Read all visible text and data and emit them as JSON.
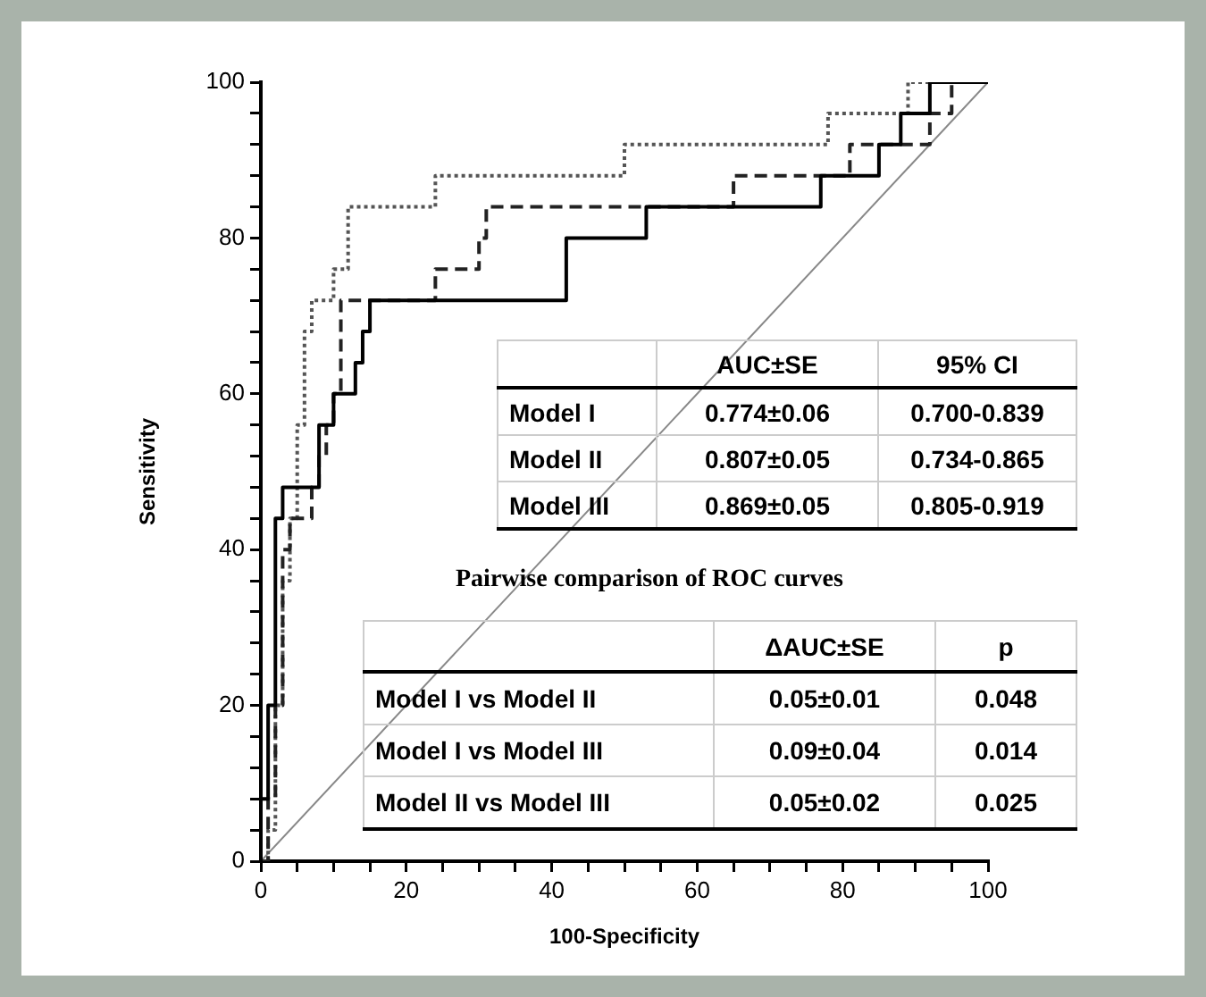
{
  "chart_data": {
    "type": "step",
    "xlabel": "100-Specificity",
    "ylabel": "Sensitivity",
    "xlim": [
      0,
      100
    ],
    "ylim": [
      0,
      100
    ],
    "xticks": [
      0,
      {
        "value": 5,
        "label": null
      },
      {
        "value": 10,
        "label": null
      },
      {
        "value": 15,
        "label": null
      },
      20,
      {
        "value": 25,
        "label": null
      },
      {
        "value": 30,
        "label": null
      },
      {
        "value": 35,
        "label": null
      },
      40,
      {
        "value": 45,
        "label": null
      },
      {
        "value": 50,
        "label": null
      },
      {
        "value": 55,
        "label": null
      },
      60,
      {
        "value": 65,
        "label": null
      },
      {
        "value": 70,
        "label": null
      },
      {
        "value": 75,
        "label": null
      },
      80,
      {
        "value": 85,
        "label": null
      },
      {
        "value": 90,
        "label": null
      },
      {
        "value": 95,
        "label": null
      },
      100
    ],
    "yticks": [
      0,
      {
        "value": 4,
        "label": null
      },
      {
        "value": 8,
        "label": null
      },
      {
        "value": 12,
        "label": null
      },
      {
        "value": 16,
        "label": null
      },
      20,
      {
        "value": 24,
        "label": null
      },
      {
        "value": 28,
        "label": null
      },
      {
        "value": 32,
        "label": null
      },
      {
        "value": 36,
        "label": null
      },
      40,
      {
        "value": 44,
        "label": null
      },
      {
        "value": 48,
        "label": null
      },
      {
        "value": 52,
        "label": null
      },
      {
        "value": 56,
        "label": null
      },
      60,
      {
        "value": 64,
        "label": null
      },
      {
        "value": 68,
        "label": null
      },
      {
        "value": 72,
        "label": null
      },
      {
        "value": 76,
        "label": null
      },
      80,
      {
        "value": 84,
        "label": null
      },
      {
        "value": 88,
        "label": null
      },
      {
        "value": 92,
        "label": null
      },
      {
        "value": 96,
        "label": null
      },
      100
    ],
    "marker": "none",
    "series": [
      {
        "type": "step",
        "color": "#000000",
        "line_style": "solid",
        "x": [
          0,
          0,
          1,
          2,
          3,
          8,
          10,
          13,
          14,
          15,
          42,
          53,
          77,
          85,
          88,
          92,
          100
        ],
        "values": [
          0,
          8,
          20,
          44,
          48,
          56,
          60,
          64,
          68,
          72,
          80,
          84,
          88,
          92,
          96,
          100,
          100
        ]
      },
      {
        "type": "step",
        "color": "#222222",
        "line_style": "dashed",
        "x": [
          0,
          1,
          2,
          3,
          4,
          7,
          8,
          9,
          10,
          11,
          24,
          30,
          31,
          65,
          81,
          92,
          95,
          100
        ],
        "values": [
          0,
          8,
          20,
          40,
          44,
          48,
          52,
          56,
          60,
          72,
          76,
          80,
          84,
          88,
          92,
          96,
          100,
          100
        ]
      },
      {
        "type": "step",
        "color": "#555555",
        "line_style": "dotted",
        "x": [
          0,
          1,
          2,
          3,
          4,
          5,
          6,
          7,
          10,
          12,
          24,
          50,
          78,
          89,
          100
        ],
        "values": [
          0,
          4,
          20,
          36,
          44,
          56,
          68,
          72,
          76,
          84,
          88,
          92,
          96,
          100,
          100
        ]
      },
      {
        "type": "line",
        "color": "#888888",
        "line_style": "solid",
        "x": [
          0,
          100
        ],
        "values": [
          0,
          100
        ]
      }
    ],
    "annotations": [
      "AUC±SE",
      "95% CI",
      "Model I",
      "0.774±0.06",
      "0.700-0.839",
      "Model II",
      "0.807±0.05",
      "0.734-0.865",
      "Model III",
      "0.869±0.05",
      "0.805-0.919",
      "Pairwise comparison of ROC curves",
      "ΔAUC±SE",
      "p",
      "Model I vs Model II",
      "0.05±0.01",
      "0.048",
      "Model I vs Model III",
      "0.09±0.04",
      "0.014",
      "Model II vs Model III",
      "0.05±0.02",
      "0.025"
    ]
  }
}
